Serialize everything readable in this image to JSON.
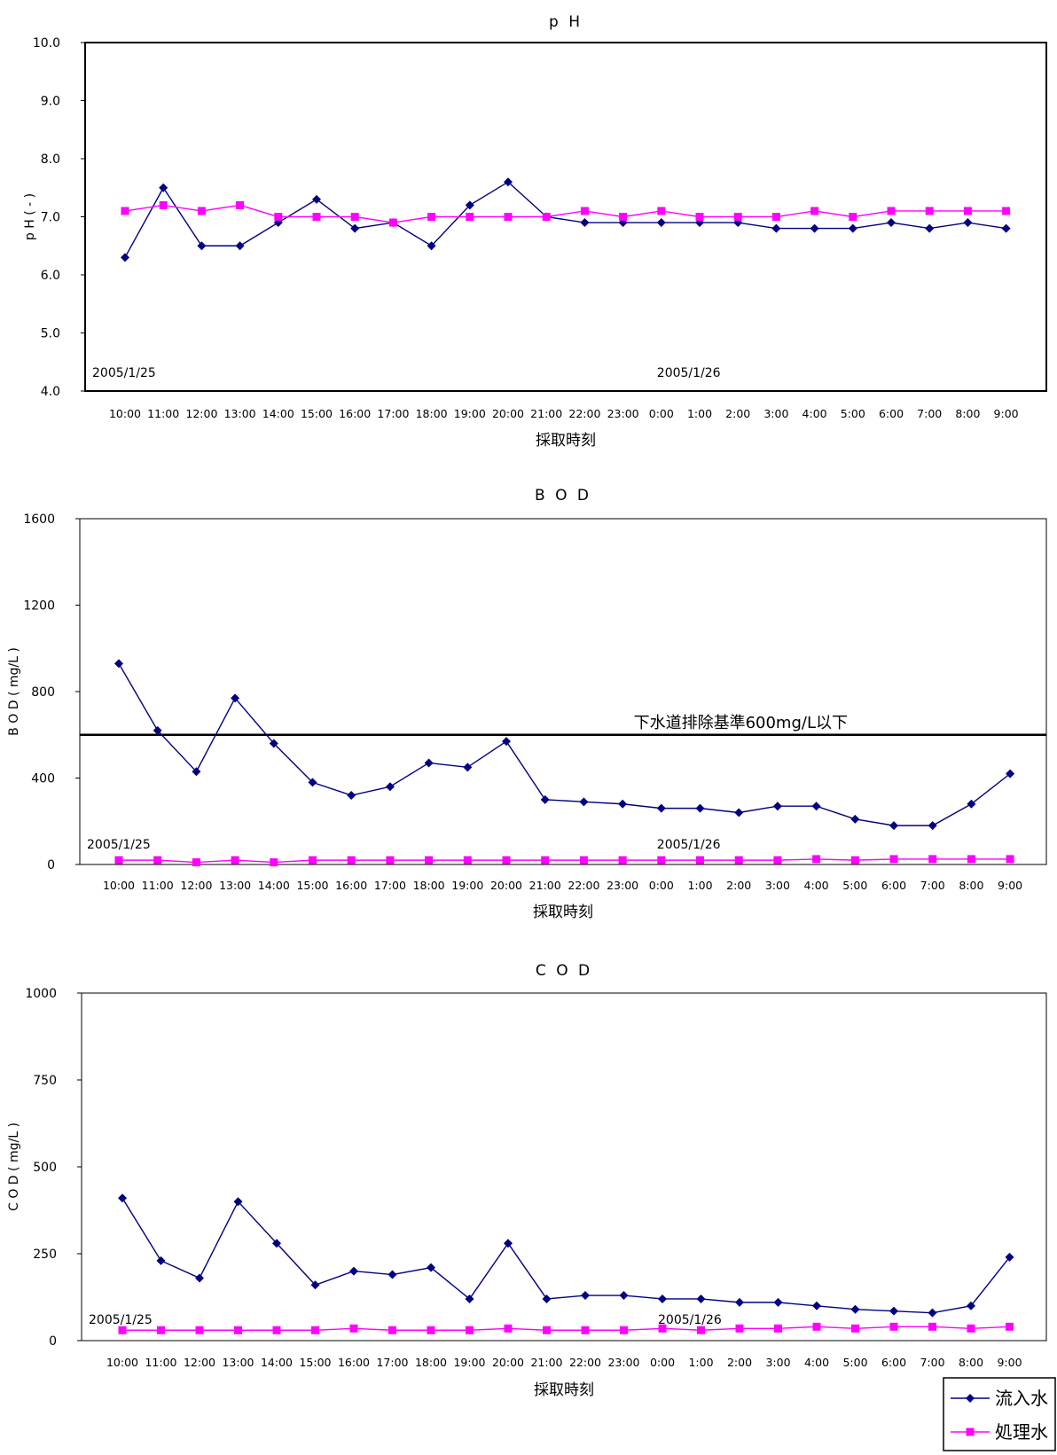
{
  "chart_data": [
    {
      "type": "line",
      "title": "p H",
      "ylabel": "p H ( - )",
      "xlabel": "採取時刻",
      "ylim": [
        4.0,
        10.0
      ],
      "yticks": [
        "4.0",
        "5.0",
        "6.0",
        "7.0",
        "8.0",
        "9.0",
        "10.0"
      ],
      "categories": [
        "10:00",
        "11:00",
        "12:00",
        "13:00",
        "14:00",
        "15:00",
        "16:00",
        "17:00",
        "18:00",
        "19:00",
        "20:00",
        "21:00",
        "22:00",
        "23:00",
        "0:00",
        "1:00",
        "2:00",
        "3:00",
        "4:00",
        "5:00",
        "6:00",
        "7:00",
        "8:00",
        "9:00"
      ],
      "date_labels": [
        {
          "text": "2005/1/25",
          "at": "10:00"
        },
        {
          "text": "2005/1/26",
          "at": "0:00"
        }
      ],
      "series": [
        {
          "name": "流入水",
          "color": "#000080",
          "marker": "diamond",
          "values": [
            6.3,
            7.5,
            6.5,
            6.5,
            6.9,
            7.3,
            6.8,
            6.9,
            6.5,
            7.2,
            7.6,
            7.0,
            6.9,
            6.9,
            6.9,
            6.9,
            6.9,
            6.8,
            6.8,
            6.8,
            6.9,
            6.8,
            6.9,
            6.8
          ]
        },
        {
          "name": "処理水",
          "color": "#ff00ff",
          "marker": "square",
          "values": [
            7.1,
            7.2,
            7.1,
            7.2,
            7.0,
            7.0,
            7.0,
            6.9,
            7.0,
            7.0,
            7.0,
            7.0,
            7.1,
            7.0,
            7.1,
            7.0,
            7.0,
            7.0,
            7.1,
            7.0,
            7.1,
            7.1,
            7.1,
            7.1
          ]
        }
      ]
    },
    {
      "type": "line",
      "title": "B O D",
      "ylabel": "B O D ( mg/L )",
      "xlabel": "採取時刻",
      "ylim": [
        0,
        1600
      ],
      "yticks": [
        "0",
        "400",
        "800",
        "1200",
        "1600"
      ],
      "categories": [
        "10:00",
        "11:00",
        "12:00",
        "13:00",
        "14:00",
        "15:00",
        "16:00",
        "17:00",
        "18:00",
        "19:00",
        "20:00",
        "21:00",
        "22:00",
        "23:00",
        "0:00",
        "1:00",
        "2:00",
        "3:00",
        "4:00",
        "5:00",
        "6:00",
        "7:00",
        "8:00",
        "9:00"
      ],
      "date_labels": [
        {
          "text": "2005/1/25",
          "at": "10:00"
        },
        {
          "text": "2005/1/26",
          "at": "0:00"
        }
      ],
      "reference_line": {
        "value": 600,
        "label": "下水道排除基準600mg/L以下"
      },
      "series": [
        {
          "name": "流入水",
          "color": "#000080",
          "marker": "diamond",
          "values": [
            930,
            620,
            430,
            770,
            560,
            380,
            320,
            360,
            470,
            450,
            570,
            300,
            290,
            280,
            260,
            260,
            240,
            270,
            270,
            210,
            180,
            180,
            280,
            420
          ]
        },
        {
          "name": "処理水",
          "color": "#ff00ff",
          "marker": "square",
          "values": [
            20,
            20,
            10,
            20,
            10,
            20,
            20,
            20,
            20,
            20,
            20,
            20,
            20,
            20,
            20,
            20,
            20,
            20,
            25,
            20,
            25,
            25,
            25,
            25
          ]
        }
      ]
    },
    {
      "type": "line",
      "title": "C O D",
      "ylabel": "C O D ( mg/L )",
      "xlabel": "採取時刻",
      "ylim": [
        0,
        1000
      ],
      "yticks": [
        "0",
        "250",
        "500",
        "750",
        "1000"
      ],
      "categories": [
        "10:00",
        "11:00",
        "12:00",
        "13:00",
        "14:00",
        "15:00",
        "16:00",
        "17:00",
        "18:00",
        "19:00",
        "20:00",
        "21:00",
        "22:00",
        "23:00",
        "0:00",
        "1:00",
        "2:00",
        "3:00",
        "4:00",
        "5:00",
        "6:00",
        "7:00",
        "8:00",
        "9:00"
      ],
      "date_labels": [
        {
          "text": "2005/1/25",
          "at": "10:00"
        },
        {
          "text": "2005/1/26",
          "at": "0:00"
        }
      ],
      "series": [
        {
          "name": "流入水",
          "color": "#000080",
          "marker": "diamond",
          "values": [
            410,
            230,
            180,
            400,
            280,
            160,
            200,
            190,
            210,
            120,
            280,
            120,
            130,
            130,
            120,
            120,
            110,
            110,
            100,
            90,
            85,
            80,
            100,
            240
          ]
        },
        {
          "name": "処理水",
          "color": "#ff00ff",
          "marker": "square",
          "values": [
            30,
            30,
            30,
            30,
            30,
            30,
            35,
            30,
            30,
            30,
            35,
            30,
            30,
            30,
            35,
            30,
            35,
            35,
            40,
            35,
            40,
            40,
            35,
            40
          ]
        }
      ]
    }
  ],
  "legend": {
    "items": [
      {
        "label": "流入水",
        "color": "#000080",
        "marker": "diamond"
      },
      {
        "label": "処理水",
        "color": "#ff00ff",
        "marker": "square"
      }
    ]
  }
}
